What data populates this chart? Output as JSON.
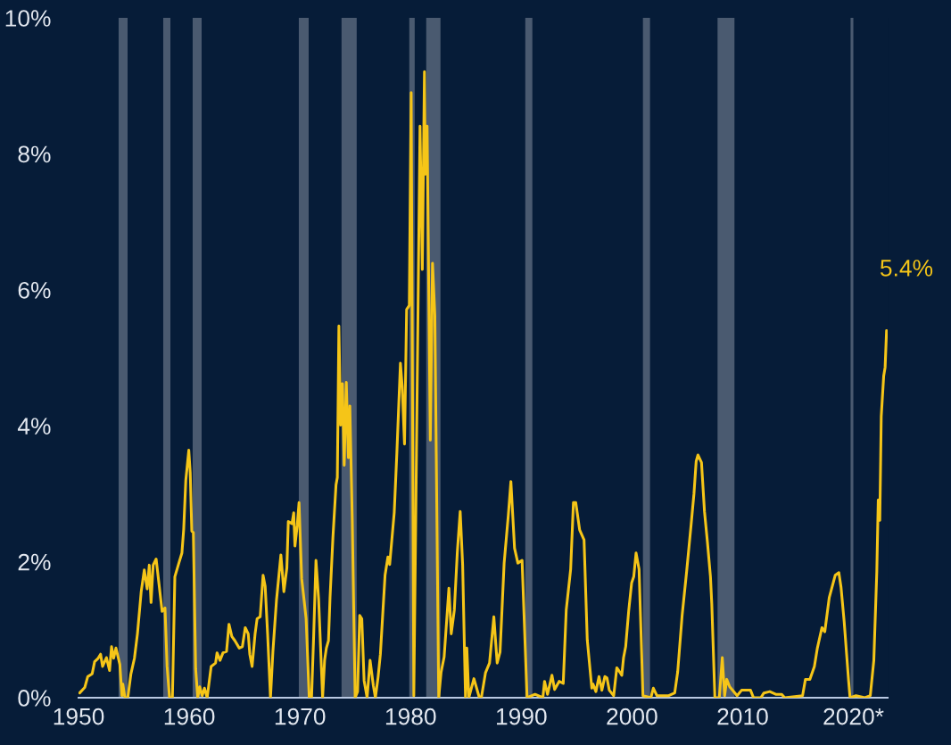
{
  "chart_data": {
    "type": "line",
    "xlim": [
      1950,
      2023.1
    ],
    "ylim": [
      0,
      10
    ],
    "xticks": [
      1950,
      1960,
      1970,
      1980,
      1990,
      2000,
      2010,
      {
        "value": 2020,
        "label": "2020*"
      }
    ],
    "yticks": [
      {
        "value": 0,
        "label": "0%"
      },
      {
        "value": 2,
        "label": "2%"
      },
      {
        "value": 4,
        "label": "4%"
      },
      {
        "value": 6,
        "label": "6%"
      },
      {
        "value": 8,
        "label": "8%"
      },
      {
        "value": 10,
        "label": "10%"
      }
    ],
    "grid": false,
    "legend": false,
    "marker": "none",
    "line_style": "solid",
    "bands": [
      {
        "axis": "x",
        "from": 1953.62,
        "to": 1954.43,
        "color": "#4a5a70"
      },
      {
        "axis": "x",
        "from": 1957.65,
        "to": 1958.3,
        "color": "#4a5a70"
      },
      {
        "axis": "x",
        "from": 1960.31,
        "to": 1961.12,
        "color": "#4a5a70"
      },
      {
        "axis": "x",
        "from": 1969.9,
        "to": 1970.79,
        "color": "#4a5a70"
      },
      {
        "axis": "x",
        "from": 1973.76,
        "to": 1975.13,
        "color": "#4a5a70"
      },
      {
        "axis": "x",
        "from": 1979.88,
        "to": 1980.37,
        "color": "#4a5a70"
      },
      {
        "axis": "x",
        "from": 1981.41,
        "to": 1982.7,
        "color": "#4a5a70"
      },
      {
        "axis": "x",
        "from": 1990.36,
        "to": 1991.0,
        "color": "#4a5a70"
      },
      {
        "axis": "x",
        "from": 2000.99,
        "to": 2001.63,
        "color": "#4a5a70"
      },
      {
        "axis": "x",
        "from": 2007.73,
        "to": 2009.26,
        "color": "#4a5a70"
      },
      {
        "axis": "x",
        "from": 2019.75,
        "to": 2020.0,
        "color": "#4a5a70"
      }
    ],
    "annotations": [
      {
        "text": "5.4%",
        "x": 2023.0,
        "y": 5.4
      }
    ],
    "series": [
      {
        "color": "#f5c518",
        "x": [
          1950.1,
          1950.56,
          1950.83,
          1951.23,
          1951.45,
          1951.77,
          1951.99,
          1952.17,
          1952.52,
          1952.8,
          1952.98,
          1953.17,
          1953.38,
          1953.73,
          1953.92,
          1954.0,
          1954.19,
          1954.45,
          1954.73,
          1955.05,
          1955.32,
          1955.66,
          1955.94,
          1956.2,
          1956.39,
          1956.55,
          1956.74,
          1957.01,
          1957.27,
          1957.55,
          1957.81,
          1958.0,
          1958.22,
          1958.48,
          1958.7,
          1959.08,
          1959.34,
          1959.5,
          1959.69,
          1959.96,
          1960.09,
          1960.23,
          1960.37,
          1960.58,
          1960.77,
          1960.95,
          1961.17,
          1961.38,
          1961.62,
          1961.98,
          1962.38,
          1962.51,
          1962.78,
          1963.05,
          1963.37,
          1963.59,
          1963.85,
          1964.12,
          1964.52,
          1964.8,
          1965.06,
          1965.33,
          1965.47,
          1965.68,
          1965.95,
          1966.13,
          1966.41,
          1966.67,
          1966.86,
          1967.08,
          1967.34,
          1967.56,
          1967.88,
          1968.28,
          1968.55,
          1968.82,
          1968.95,
          1969.28,
          1969.44,
          1969.55,
          1969.76,
          1969.92,
          1970.16,
          1970.38,
          1970.56,
          1970.84,
          1971.05,
          1971.24,
          1971.45,
          1971.69,
          1972.05,
          1972.23,
          1972.39,
          1972.58,
          1972.72,
          1972.98,
          1973.26,
          1973.38,
          1973.52,
          1973.68,
          1973.84,
          1974.0,
          1974.19,
          1974.38,
          1974.51,
          1974.73,
          1974.99,
          1975.21,
          1975.4,
          1975.59,
          1975.8,
          1976.07,
          1976.34,
          1976.63,
          1976.82,
          1977.06,
          1977.27,
          1977.69,
          1977.95,
          1978.11,
          1978.52,
          1978.76,
          1979.08,
          1979.24,
          1979.45,
          1979.64,
          1979.88,
          1980.05,
          1980.29,
          1980.85,
          1981.06,
          1981.25,
          1981.33,
          1981.49,
          1981.78,
          1981.98,
          1982.19,
          1982.54,
          1982.75,
          1983.03,
          1983.46,
          1983.67,
          1983.95,
          1984.22,
          1984.48,
          1984.7,
          1984.96,
          1985.08,
          1985.26,
          1985.72,
          1986.21,
          1986.39,
          1986.77,
          1987.13,
          1987.52,
          1987.82,
          1988.08,
          1988.45,
          1988.83,
          1989.06,
          1989.39,
          1989.69,
          1990.07,
          1990.52,
          1991.24,
          1991.95,
          1992.1,
          1992.37,
          1992.77,
          1993.01,
          1993.42,
          1993.79,
          1994.06,
          1994.46,
          1994.71,
          1994.92,
          1995.27,
          1995.67,
          1995.96,
          1996.37,
          1996.48,
          1996.74,
          1997.02,
          1997.28,
          1997.55,
          1997.74,
          1997.95,
          1998.35,
          1998.63,
          1998.89,
          1999.08,
          1999.24,
          1999.43,
          1999.7,
          1999.97,
          2000.16,
          2000.37,
          2000.64,
          2000.99,
          2001.71,
          2001.93,
          2002.25,
          2003.32,
          2003.86,
          2004.13,
          2004.53,
          2004.94,
          2005.34,
          2005.6,
          2005.8,
          2005.96,
          2006.28,
          2006.55,
          2006.81,
          2007.09,
          2007.21,
          2007.49,
          2007.89,
          2008.16,
          2008.37,
          2008.56,
          2008.83,
          2009.5,
          2009.9,
          2010.71,
          2010.98,
          2011.64,
          2011.92,
          2012.45,
          2012.99,
          2013.53,
          2013.8,
          2015.41,
          2015.67,
          2016.07,
          2016.48,
          2016.75,
          2017.16,
          2017.42,
          2017.82,
          2018.36,
          2018.69,
          2018.89,
          2019.17,
          2019.57,
          2019.7,
          2020.24,
          2021.04,
          2021.53,
          2021.85,
          2022.12,
          2022.25,
          2022.39,
          2022.52,
          2022.74,
          2022.87,
          2023.0
        ],
        "values": [
          0.07,
          0.15,
          0.31,
          0.35,
          0.53,
          0.58,
          0.64,
          0.46,
          0.59,
          0.4,
          0.75,
          0.58,
          0.73,
          0.49,
          0.03,
          0.2,
          0,
          0,
          0.35,
          0.58,
          0.94,
          1.56,
          1.88,
          1.6,
          1.95,
          1.4,
          1.95,
          2.04,
          1.67,
          1.27,
          1.32,
          0.46,
          0,
          0,
          1.78,
          1.99,
          2.13,
          2.48,
          3.2,
          3.64,
          3.31,
          2.45,
          2.43,
          0.42,
          0,
          0.16,
          0.03,
          0.14,
          0,
          0.46,
          0.51,
          0.66,
          0.55,
          0.66,
          0.68,
          1.08,
          0.9,
          0.84,
          0.73,
          0.75,
          1.03,
          0.94,
          0.64,
          0.46,
          0.94,
          1.16,
          1.19,
          1.8,
          1.64,
          0.94,
          0,
          0.68,
          1.43,
          2.1,
          1.56,
          1.91,
          2.59,
          2.56,
          2.72,
          2.23,
          2.54,
          2.87,
          1.75,
          1.43,
          1.16,
          0,
          0,
          0.9,
          2.02,
          1.45,
          0,
          0.55,
          0.73,
          0.84,
          1.47,
          2.35,
          3.13,
          3.24,
          5.47,
          4.01,
          4.62,
          3.42,
          4.64,
          3.53,
          4.29,
          2.61,
          0,
          0.09,
          1.21,
          1.16,
          0.25,
          0,
          0.55,
          0.18,
          0,
          0.3,
          0.64,
          1.8,
          2.07,
          1.96,
          2.72,
          3.61,
          4.92,
          4.58,
          3.73,
          5.71,
          5.77,
          8.9,
          0.03,
          8.41,
          6.3,
          9.21,
          7.7,
          8.41,
          3.79,
          6.39,
          5.63,
          0,
          0.37,
          0.6,
          1.61,
          0.94,
          1.29,
          2.14,
          2.74,
          1.96,
          0,
          0.73,
          0,
          0.28,
          0,
          0,
          0.37,
          0.51,
          1.19,
          0.51,
          0.67,
          1.98,
          2.69,
          3.18,
          2.2,
          1.98,
          2.02,
          0,
          0.05,
          0,
          0.24,
          0.05,
          0.33,
          0.12,
          0.24,
          0.21,
          1.29,
          1.89,
          2.87,
          2.87,
          2.47,
          2.32,
          0.85,
          0.14,
          0.2,
          0.09,
          0.31,
          0.11,
          0.31,
          0.29,
          0.11,
          0.03,
          0.44,
          0.38,
          0.33,
          0.59,
          0.75,
          1.27,
          1.69,
          1.78,
          2.13,
          1.89,
          0.03,
          0,
          0.14,
          0.03,
          0.03,
          0.07,
          0.38,
          1.21,
          1.86,
          2.54,
          3.0,
          3.48,
          3.57,
          3.46,
          2.74,
          2.3,
          1.78,
          1.38,
          0,
          0,
          0.59,
          0.03,
          0.27,
          0.16,
          0.03,
          0.11,
          0.11,
          0,
          0,
          0.07,
          0.09,
          0.05,
          0.05,
          0,
          0.03,
          0.27,
          0.27,
          0.46,
          0.73,
          1.03,
          0.97,
          1.47,
          1.8,
          1.84,
          1.62,
          1.12,
          0.25,
          0,
          0.03,
          0,
          0.03,
          0.55,
          1.86,
          2.91,
          2.61,
          4.14,
          4.73,
          4.86,
          5.4
        ]
      }
    ]
  }
}
